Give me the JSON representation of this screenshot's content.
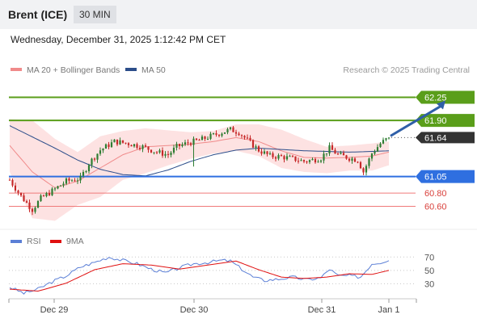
{
  "header": {
    "title": "Brent (ICE)",
    "interval": "30 MIN",
    "datetime": "Wednesday, December 31, 2025 1:12:42 PM CET"
  },
  "colors": {
    "price_up": "#2e7d32",
    "price_down": "#c62828",
    "ma20": "#f08a8a",
    "bollinger_fill": "#fde2e2",
    "ma50": "#2c4d8a",
    "resistance": "#5a9e1a",
    "support": "#2f6fe0",
    "target": "#f07a7a",
    "current": "#333333",
    "arrow": "#2f5fa8",
    "rsi": "#5b7fd6",
    "rsi_ma": "#e01010"
  },
  "chart_data": [
    {
      "type": "candlestick",
      "title": "Brent (ICE)",
      "legend": [
        {
          "label": "MA 20 + Bollinger Bands",
          "color": "#f08a8a"
        },
        {
          "label": "MA 50",
          "color": "#2c4d8a"
        }
      ],
      "legend_placement": "top-left",
      "credit": "Research © 2025 Trading Central",
      "ylim": [
        60.3,
        62.5
      ],
      "x_ticks": [
        "Dec 29",
        "Dec 30",
        "Dec 31",
        "Jan 1"
      ],
      "close_trend": [
        [
          0,
          61.0
        ],
        [
          4,
          60.75
        ],
        [
          6,
          60.65
        ],
        [
          8,
          60.55
        ],
        [
          11,
          60.72
        ],
        [
          16,
          60.86
        ],
        [
          20,
          60.98
        ],
        [
          25,
          61.02
        ],
        [
          28,
          61.25
        ],
        [
          32,
          61.45
        ],
        [
          37,
          61.58
        ],
        [
          42,
          61.55
        ],
        [
          47,
          61.5
        ],
        [
          52,
          61.42
        ],
        [
          56,
          61.38
        ],
        [
          59,
          61.5
        ],
        [
          63,
          61.56
        ],
        [
          67,
          61.6
        ],
        [
          71,
          61.66
        ],
        [
          75,
          61.72
        ],
        [
          78,
          61.76
        ],
        [
          81,
          61.72
        ],
        [
          84,
          61.6
        ],
        [
          88,
          61.45
        ],
        [
          92,
          61.36
        ],
        [
          96,
          61.35
        ],
        [
          100,
          61.32
        ],
        [
          104,
          61.28
        ],
        [
          107,
          61.3
        ],
        [
          110,
          61.33
        ],
        [
          113,
          61.48
        ],
        [
          116,
          61.38
        ],
        [
          120,
          61.33
        ],
        [
          123,
          61.3
        ],
        [
          125,
          61.12
        ],
        [
          128,
          61.4
        ],
        [
          131,
          61.55
        ],
        [
          134,
          61.64
        ]
      ],
      "ma50": [
        [
          0,
          61.82
        ],
        [
          8,
          61.65
        ],
        [
          16,
          61.48
        ],
        [
          24,
          61.3
        ],
        [
          32,
          61.16
        ],
        [
          40,
          61.08
        ],
        [
          48,
          61.06
        ],
        [
          56,
          61.15
        ],
        [
          64,
          61.28
        ],
        [
          72,
          61.38
        ],
        [
          80,
          61.45
        ],
        [
          88,
          61.48
        ],
        [
          96,
          61.46
        ],
        [
          104,
          61.44
        ],
        [
          112,
          61.43
        ],
        [
          120,
          61.42
        ],
        [
          128,
          61.43
        ],
        [
          134,
          61.44
        ]
      ],
      "ma20": [
        [
          0,
          61.52
        ],
        [
          8,
          61.12
        ],
        [
          16,
          60.88
        ],
        [
          24,
          60.98
        ],
        [
          32,
          61.18
        ],
        [
          40,
          61.38
        ],
        [
          48,
          61.5
        ],
        [
          56,
          61.52
        ],
        [
          64,
          61.54
        ],
        [
          72,
          61.58
        ],
        [
          80,
          61.64
        ],
        [
          88,
          61.58
        ],
        [
          96,
          61.44
        ],
        [
          104,
          61.34
        ],
        [
          112,
          61.33
        ],
        [
          120,
          61.34
        ],
        [
          128,
          61.36
        ],
        [
          134,
          61.42
        ]
      ],
      "bollinger_upper": [
        [
          0,
          61.92
        ],
        [
          8,
          61.9
        ],
        [
          16,
          61.62
        ],
        [
          24,
          61.42
        ],
        [
          32,
          61.66
        ],
        [
          40,
          61.74
        ],
        [
          48,
          61.78
        ],
        [
          56,
          61.75
        ],
        [
          64,
          61.72
        ],
        [
          72,
          61.74
        ],
        [
          80,
          61.84
        ],
        [
          88,
          61.84
        ],
        [
          96,
          61.76
        ],
        [
          104,
          61.62
        ],
        [
          112,
          61.5
        ],
        [
          120,
          61.52
        ],
        [
          128,
          61.55
        ],
        [
          134,
          61.58
        ]
      ],
      "bollinger_lower": [
        [
          0,
          61.12
        ],
        [
          8,
          60.42
        ],
        [
          16,
          60.38
        ],
        [
          24,
          60.62
        ],
        [
          32,
          60.74
        ],
        [
          40,
          61.0
        ],
        [
          48,
          61.1
        ],
        [
          56,
          61.22
        ],
        [
          64,
          61.32
        ],
        [
          72,
          61.4
        ],
        [
          80,
          61.44
        ],
        [
          88,
          61.36
        ],
        [
          96,
          61.18
        ],
        [
          104,
          61.12
        ],
        [
          112,
          61.1
        ],
        [
          120,
          61.14
        ],
        [
          128,
          61.14
        ],
        [
          134,
          61.22
        ]
      ],
      "levels": [
        {
          "label": "62.25",
          "value": 62.25,
          "kind": "resistance"
        },
        {
          "label": "61.90",
          "value": 61.9,
          "kind": "resistance"
        },
        {
          "label": "61.64",
          "value": 61.64,
          "kind": "current"
        },
        {
          "label": "61.05",
          "value": 61.05,
          "kind": "support"
        },
        {
          "label": "60.80",
          "value": 60.8,
          "kind": "target"
        },
        {
          "label": "60.60",
          "value": 60.6,
          "kind": "target"
        }
      ],
      "arrow": {
        "from": [
          134,
          61.64
        ],
        "to": [
          154,
          62.2
        ]
      }
    },
    {
      "type": "line",
      "title": "",
      "legend": [
        {
          "label": "RSI",
          "color": "#5b7fd6"
        },
        {
          "label": "9MA",
          "color": "#e01010"
        }
      ],
      "ylim": [
        10,
        80
      ],
      "y_ticks": [
        "70",
        "50",
        "30"
      ],
      "rsi": [
        [
          0,
          25
        ],
        [
          5,
          16
        ],
        [
          10,
          22
        ],
        [
          15,
          33
        ],
        [
          20,
          42
        ],
        [
          25,
          55
        ],
        [
          30,
          62
        ],
        [
          35,
          70
        ],
        [
          40,
          65
        ],
        [
          45,
          60
        ],
        [
          50,
          52
        ],
        [
          55,
          46
        ],
        [
          60,
          54
        ],
        [
          65,
          60
        ],
        [
          70,
          62
        ],
        [
          75,
          65
        ],
        [
          78,
          64
        ],
        [
          82,
          52
        ],
        [
          86,
          40
        ],
        [
          90,
          35
        ],
        [
          95,
          37
        ],
        [
          100,
          40
        ],
        [
          105,
          36
        ],
        [
          110,
          39
        ],
        [
          113,
          52
        ],
        [
          116,
          42
        ],
        [
          120,
          42
        ],
        [
          124,
          40
        ],
        [
          128,
          60
        ],
        [
          131,
          62
        ],
        [
          134,
          66
        ]
      ],
      "rsi_ma": [
        [
          0,
          22
        ],
        [
          10,
          19
        ],
        [
          20,
          31
        ],
        [
          30,
          51
        ],
        [
          40,
          60
        ],
        [
          50,
          58
        ],
        [
          60,
          52
        ],
        [
          70,
          58
        ],
        [
          80,
          64
        ],
        [
          88,
          51
        ],
        [
          96,
          40
        ],
        [
          104,
          38
        ],
        [
          112,
          40
        ],
        [
          120,
          45
        ],
        [
          128,
          44
        ],
        [
          134,
          50
        ]
      ]
    }
  ]
}
